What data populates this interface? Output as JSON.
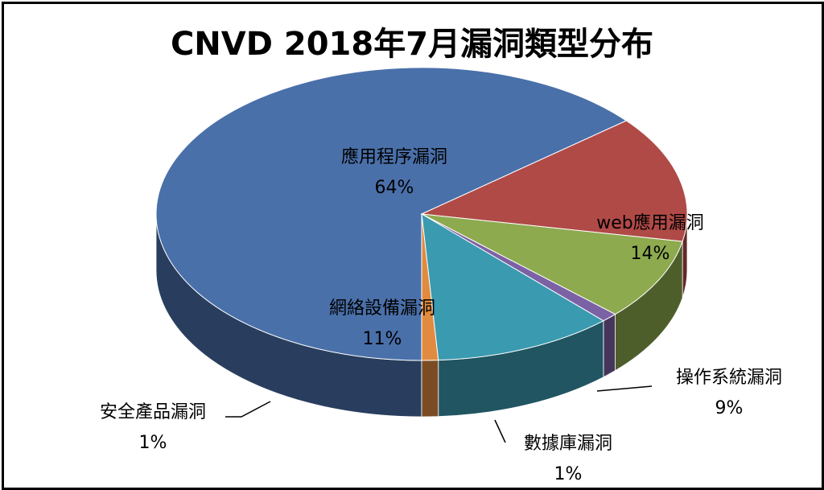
{
  "chart_data": {
    "type": "pie",
    "title": "CNVD 2018年7月漏洞類型分布",
    "slices": [
      {
        "label": "應用程序漏洞",
        "value": 64,
        "pct": "64%",
        "color": "#4a70aa"
      },
      {
        "label": "web應用漏洞",
        "value": 14,
        "pct": "14%",
        "color": "#b04a47"
      },
      {
        "label": "操作系統漏洞",
        "value": 9,
        "pct": "9%",
        "color": "#8daa4f"
      },
      {
        "label": "數據庫漏洞",
        "value": 1,
        "pct": "1%",
        "color": "#7b62a4"
      },
      {
        "label": "網絡設備漏洞",
        "value": 11,
        "pct": "11%",
        "color": "#3a9ab0"
      },
      {
        "label": "安全產品漏洞",
        "value": 1,
        "pct": "1%",
        "color": "#e08b3f"
      }
    ]
  }
}
